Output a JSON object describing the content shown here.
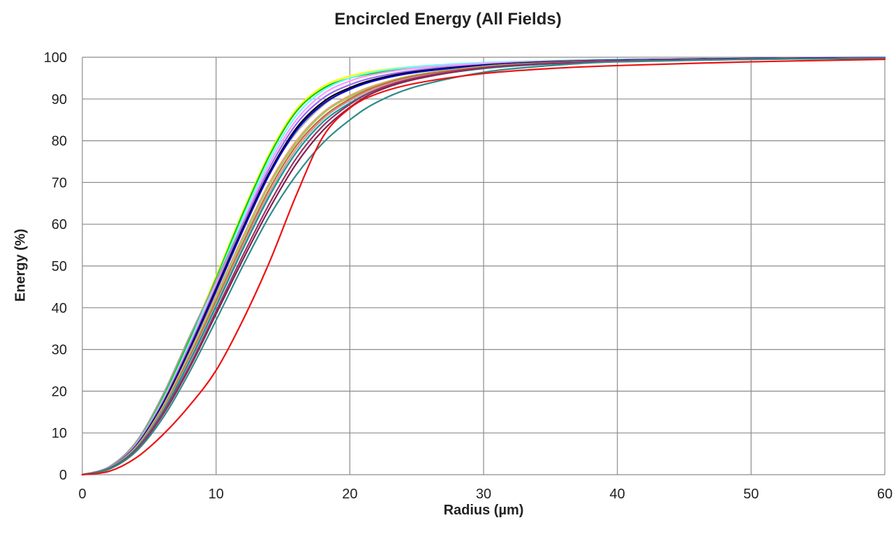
{
  "chart_data": {
    "type": "line",
    "title": "Encircled Energy (All Fields)",
    "xlabel": "Radius (µm)",
    "ylabel": "Energy (%)",
    "xlim": [
      0,
      60
    ],
    "ylim": [
      0,
      100
    ],
    "x_ticks": [
      "0",
      "10",
      "20",
      "30",
      "40",
      "50",
      "60"
    ],
    "y_ticks": [
      "0",
      "10",
      "20",
      "30",
      "40",
      "50",
      "60",
      "70",
      "80",
      "90",
      "100"
    ],
    "grid": true,
    "legend": "none",
    "x": [
      0,
      2,
      4,
      6,
      8,
      10,
      12,
      14,
      16,
      18,
      20,
      22,
      25,
      30,
      35,
      40,
      50,
      60
    ],
    "series": [
      {
        "color": "#ffff00",
        "values": [
          0,
          1.8,
          7.5,
          18.5,
          32.5,
          47.5,
          63,
          77,
          87.5,
          93,
          95.5,
          96.8,
          97.8,
          98.6,
          99.1,
          99.4,
          99.7,
          99.9
        ]
      },
      {
        "color": "#00cc00",
        "values": [
          0,
          1.8,
          7.4,
          18.3,
          32.2,
          47,
          62.5,
          76.5,
          87,
          92.5,
          95,
          96.3,
          97.4,
          98.4,
          99,
          99.3,
          99.6,
          99.8
        ]
      },
      {
        "color": "#66ffff",
        "values": [
          0,
          1.7,
          7.2,
          17.8,
          31.5,
          46.5,
          61.5,
          75.5,
          86,
          92,
          95,
          96.6,
          97.8,
          98.7,
          99.2,
          99.5,
          99.7,
          99.9
        ]
      },
      {
        "color": "#ff99ff",
        "values": [
          0,
          1.7,
          7.1,
          17.5,
          31,
          45.5,
          60.5,
          74.5,
          85,
          91.2,
          94.3,
          96,
          97.4,
          98.5,
          99.1,
          99.4,
          99.7,
          99.9
        ]
      },
      {
        "color": "#a0a0a0",
        "values": [
          0,
          1.9,
          7.8,
          19,
          33,
          46.5,
          60,
          72.5,
          82,
          88.5,
          92.5,
          94.8,
          96.7,
          98.2,
          99,
          99.4,
          99.7,
          99.9
        ]
      },
      {
        "color": "#9966ff",
        "values": [
          0,
          1.7,
          7,
          17.2,
          30.6,
          45,
          59.8,
          73.5,
          84,
          90.2,
          93.4,
          95.3,
          96.9,
          98.2,
          98.9,
          99.3,
          99.6,
          99.8
        ]
      },
      {
        "color": "#000000",
        "values": [
          0,
          1.6,
          6.8,
          16.8,
          30,
          44.5,
          59,
          72.5,
          83,
          89.3,
          92.7,
          94.8,
          96.6,
          98.1,
          98.9,
          99.3,
          99.7,
          99.9
        ]
      },
      {
        "color": "#0000cc",
        "values": [
          0,
          1.6,
          6.7,
          16.5,
          29.6,
          44,
          58.5,
          72,
          82.5,
          88.8,
          92.3,
          94.5,
          96.4,
          98,
          98.8,
          99.3,
          99.7,
          99.9
        ]
      },
      {
        "color": "#ff9966",
        "values": [
          0,
          1.6,
          6.6,
          16.2,
          29,
          43,
          57,
          70,
          80,
          86.8,
          90.8,
          93.4,
          95.8,
          97.8,
          98.7,
          99.2,
          99.6,
          99.8
        ]
      },
      {
        "color": "#99cc66",
        "values": [
          0,
          1.6,
          6.5,
          16,
          28.6,
          42.5,
          56.5,
          69.5,
          79.5,
          86.5,
          90.5,
          93.2,
          95.8,
          97.8,
          98.7,
          99.2,
          99.6,
          99.8
        ]
      },
      {
        "color": "#cc6633",
        "values": [
          0,
          1.5,
          6.3,
          15.6,
          28,
          41.6,
          55.5,
          68.5,
          78.8,
          85.7,
          90,
          93,
          95.6,
          97.6,
          98.6,
          99.1,
          99.6,
          99.8
        ]
      },
      {
        "color": "#cc9999",
        "values": [
          0,
          1.5,
          6.2,
          15.3,
          27.5,
          41,
          54.8,
          67.6,
          78,
          85.2,
          89.6,
          92.6,
          95.3,
          97.4,
          98.5,
          99.1,
          99.6,
          99.8
        ]
      },
      {
        "color": "#009999",
        "values": [
          0,
          1.5,
          6.1,
          15,
          27,
          40.3,
          54,
          66.8,
          77.2,
          84.5,
          89,
          92.2,
          95,
          97.3,
          98.4,
          99,
          99.5,
          99.8
        ]
      },
      {
        "color": "#7f2050",
        "values": [
          0,
          1.4,
          5.8,
          14.3,
          25.5,
          38.5,
          51.5,
          63.8,
          74.5,
          82.5,
          88,
          91.8,
          94.8,
          97.4,
          98.5,
          99.1,
          99.6,
          99.8
        ]
      },
      {
        "color": "#993366",
        "values": [
          0,
          1.4,
          5.9,
          14.6,
          26,
          39.2,
          52.5,
          65,
          75.8,
          83.6,
          88.7,
          92.2,
          95.1,
          97.5,
          98.6,
          99.2,
          99.6,
          99.8
        ]
      },
      {
        "color": "#2e8b8b",
        "values": [
          0,
          1.3,
          5.5,
          13.5,
          24.5,
          37,
          50,
          62,
          71.8,
          79.5,
          85,
          89.2,
          93,
          96.4,
          98,
          98.9,
          99.5,
          99.8
        ]
      },
      {
        "color": "#ee1111",
        "values": [
          0,
          0.8,
          4,
          9.5,
          16.5,
          25,
          37,
          51,
          67,
          81,
          87.8,
          91.2,
          93.8,
          96.1,
          97.3,
          98,
          98.9,
          99.5
        ]
      }
    ]
  }
}
